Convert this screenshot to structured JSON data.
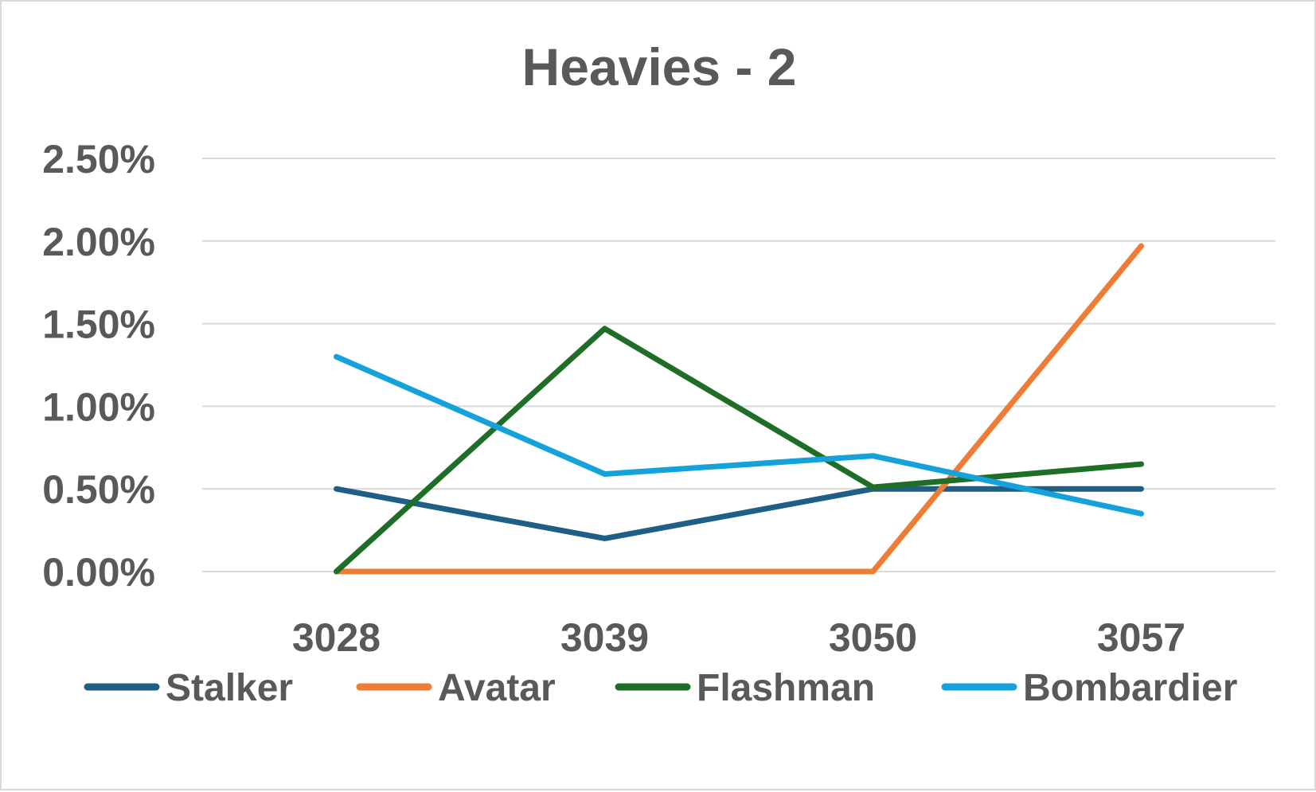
{
  "chart_data": {
    "type": "line",
    "title": "Heavies - 2",
    "xlabel": "",
    "ylabel": "",
    "categories": [
      "3028",
      "3039",
      "3050",
      "3057"
    ],
    "y_tick_labels": [
      "0.00%",
      "0.50%",
      "1.00%",
      "1.50%",
      "2.00%",
      "2.50%"
    ],
    "ylim": [
      0,
      0.025
    ],
    "grid": true,
    "legend_position": "bottom",
    "series": [
      {
        "name": "Stalker",
        "color": "#1f5f86",
        "values": [
          0.005,
          0.002,
          0.005,
          0.005
        ]
      },
      {
        "name": "Avatar",
        "color": "#ef7b35",
        "values": [
          0.0,
          0.0,
          0.0,
          0.0197
        ]
      },
      {
        "name": "Flashman",
        "color": "#1e6e27",
        "values": [
          0.0,
          0.0147,
          0.0051,
          0.0065
        ]
      },
      {
        "name": "Bombardier",
        "color": "#15a2db",
        "values": [
          0.013,
          0.0059,
          0.007,
          0.0035
        ]
      }
    ]
  }
}
